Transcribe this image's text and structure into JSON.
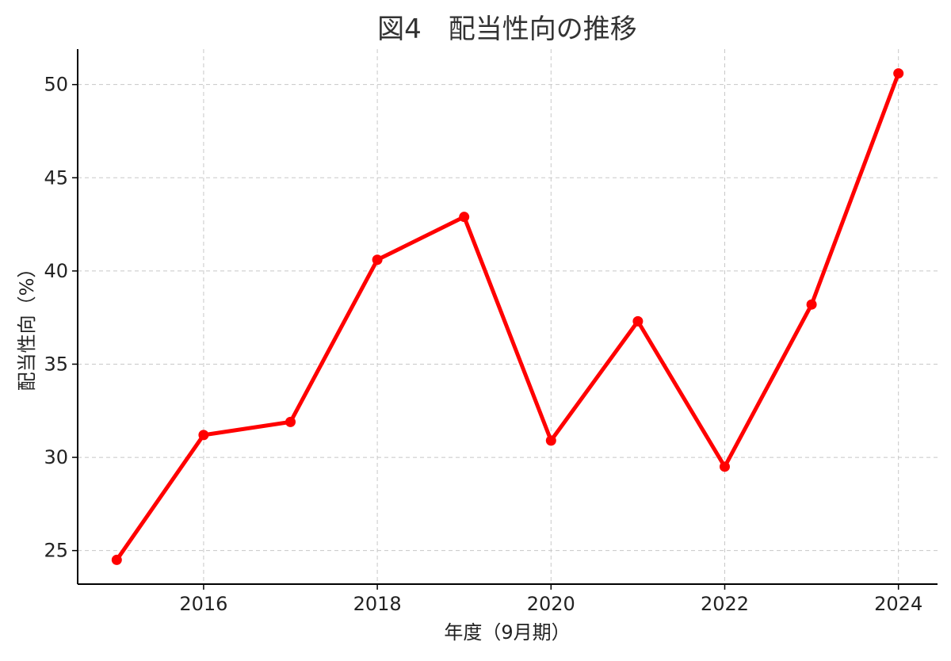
{
  "chart_data": {
    "type": "line",
    "title": "図4　配当性向の推移",
    "xlabel": "年度（9月期）",
    "ylabel": "配当性向（%）",
    "x": [
      2015,
      2016,
      2017,
      2018,
      2019,
      2020,
      2021,
      2022,
      2023,
      2024
    ],
    "series": [
      {
        "values": [
          24.5,
          31.2,
          31.9,
          40.6,
          42.9,
          30.9,
          37.3,
          29.5,
          38.2,
          50.6
        ],
        "color": "#ff0000"
      }
    ],
    "xticks": [
      2016,
      2018,
      2020,
      2022,
      2024
    ],
    "yticks": [
      25,
      30,
      35,
      40,
      45,
      50
    ],
    "xlim": [
      2014.55,
      2024.45
    ],
    "ylim": [
      23.2,
      51.9
    ],
    "grid": true,
    "legend": "none"
  }
}
